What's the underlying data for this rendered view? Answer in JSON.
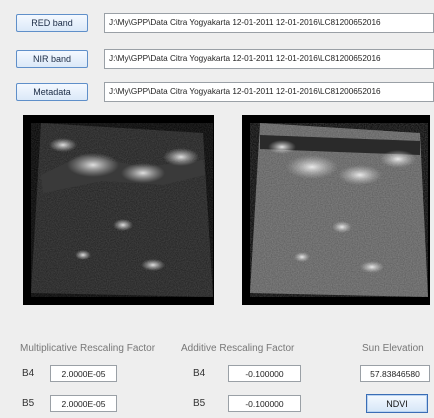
{
  "bands": [
    {
      "button_label": "RED band",
      "path": "J:\\My\\GPP\\Data Citra Yogyakarta 12-01-2011 12-01-2016\\LC81200652016"
    },
    {
      "button_label": "NIR band",
      "path": "J:\\My\\GPP\\Data Citra Yogyakarta 12-01-2011 12-01-2016\\LC81200652016"
    },
    {
      "button_label": "Metadata",
      "path": "J:\\My\\GPP\\Data Citra Yogyakarta 12-01-2011 12-01-2016\\LC81200652016"
    }
  ],
  "params": {
    "mult_title": "Multiplicative Rescaling Factor",
    "add_title": "Additive Rescaling Factor",
    "sun_title": "Sun Elevation",
    "mult": [
      {
        "band": "B4",
        "value": "2.0000E-05"
      },
      {
        "band": "B5",
        "value": "2.0000E-05"
      }
    ],
    "add": [
      {
        "band": "B4",
        "value": "-0.100000"
      },
      {
        "band": "B5",
        "value": "-0.100000"
      }
    ],
    "sun_value": "57.83846580",
    "ndvi_label": "NDVI"
  },
  "colors": {
    "button_border": "#5f8fc9",
    "background": "#eeeeee",
    "image_background": "#000000"
  }
}
